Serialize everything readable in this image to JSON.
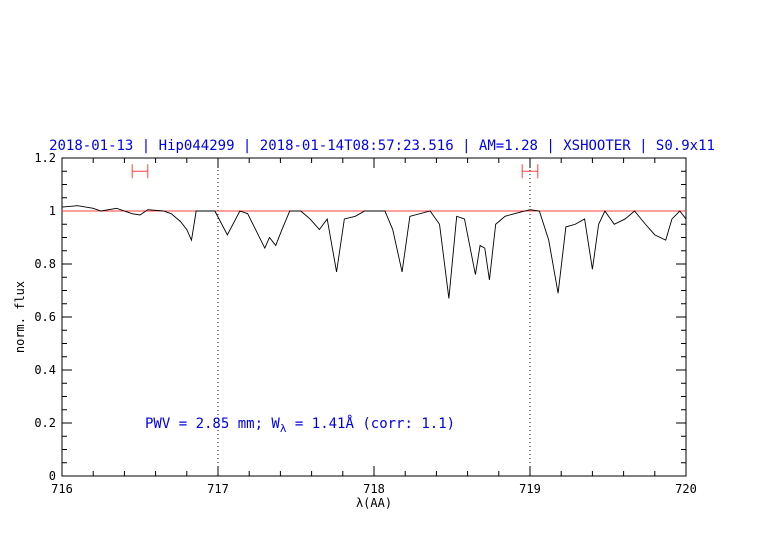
{
  "chart_data": {
    "type": "line",
    "title": "2018-01-13 | Hip044299 | 2018-01-14T08:57:23.516 | AM=1.28 | XSHOOTER | S0.9x11",
    "x_label": "λ(AA)",
    "y_label": "norm. flux",
    "annotation": {
      "text": "PWV = 2.85 mm; W",
      "subscript": "λ",
      "rest": " = 1.41Å  (corr: 1.1)"
    },
    "xlim": [
      716,
      720
    ],
    "ylim": [
      0,
      1.2
    ],
    "xticks": [
      716,
      717,
      718,
      719,
      720
    ],
    "yticks": [
      0,
      0.2,
      0.4,
      0.6,
      0.8,
      1,
      1.2
    ],
    "minor_divisions": {
      "x": 5,
      "y": 4
    },
    "continuum": {
      "value": 1,
      "color": "#ff4040"
    },
    "vlines": [
      717,
      719
    ],
    "windows": {
      "color": "#ff4040",
      "y": 1.15,
      "ranges": [
        [
          716.45,
          716.55
        ],
        [
          718.95,
          719.05
        ]
      ]
    },
    "series": [
      {
        "color": "#000000",
        "x": [
          716.0,
          716.1,
          716.2,
          716.25,
          716.35,
          716.45,
          716.5,
          716.55,
          716.65,
          716.7,
          716.76,
          716.8,
          716.83,
          716.86,
          716.98,
          717.06,
          717.14,
          717.19,
          717.3,
          717.33,
          717.37,
          717.41,
          717.46,
          717.53,
          717.59,
          717.65,
          717.7,
          717.76,
          717.81,
          717.88,
          717.94,
          718.07,
          718.12,
          718.18,
          718.23,
          718.36,
          718.42,
          718.48,
          718.53,
          718.58,
          718.65,
          718.68,
          718.71,
          718.74,
          718.78,
          718.84,
          718.9,
          719.0,
          719.06,
          719.12,
          719.18,
          719.23,
          719.29,
          719.35,
          719.4,
          719.44,
          719.48,
          719.54,
          719.61,
          719.67,
          719.74,
          719.8,
          719.87,
          719.91,
          719.96,
          720.0
        ],
        "values": [
          1.015,
          1.02,
          1.01,
          1.0,
          1.01,
          0.99,
          0.985,
          1.005,
          1.0,
          0.99,
          0.96,
          0.93,
          0.89,
          1.0,
          1.0,
          0.91,
          1.0,
          0.99,
          0.86,
          0.9,
          0.87,
          0.93,
          1.0,
          1.0,
          0.97,
          0.93,
          0.97,
          0.77,
          0.97,
          0.98,
          1.0,
          1.0,
          0.93,
          0.77,
          0.98,
          1.0,
          0.95,
          0.67,
          0.98,
          0.97,
          0.76,
          0.87,
          0.86,
          0.74,
          0.95,
          0.98,
          0.99,
          1.005,
          1.0,
          0.89,
          0.69,
          0.94,
          0.95,
          0.97,
          0.78,
          0.95,
          1.0,
          0.95,
          0.97,
          1.0,
          0.95,
          0.91,
          0.89,
          0.97,
          1.0,
          0.97
        ]
      }
    ]
  }
}
